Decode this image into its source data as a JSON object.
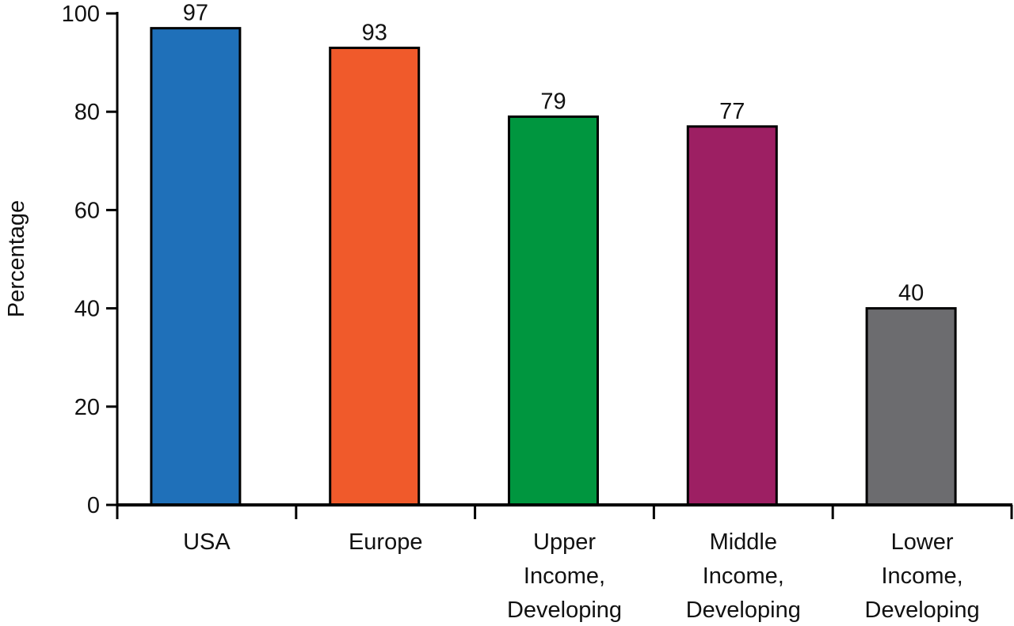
{
  "chart_data": {
    "type": "bar",
    "y_label": "Percentage",
    "categories": [
      "USA",
      "Europe",
      "Upper\nIncome,\nDeveloping",
      "Middle\nIncome,\nDeveloping",
      "Lower\nIncome,\nDeveloping"
    ],
    "values": [
      97,
      93,
      79,
      77,
      40
    ],
    "colors": [
      "#1f70b9",
      "#f05a2b",
      "#00963f",
      "#9d1f63",
      "#6c6c6f"
    ],
    "ylim": [
      0,
      100
    ],
    "yticks": [
      0,
      20,
      40,
      60,
      80,
      100
    ]
  }
}
